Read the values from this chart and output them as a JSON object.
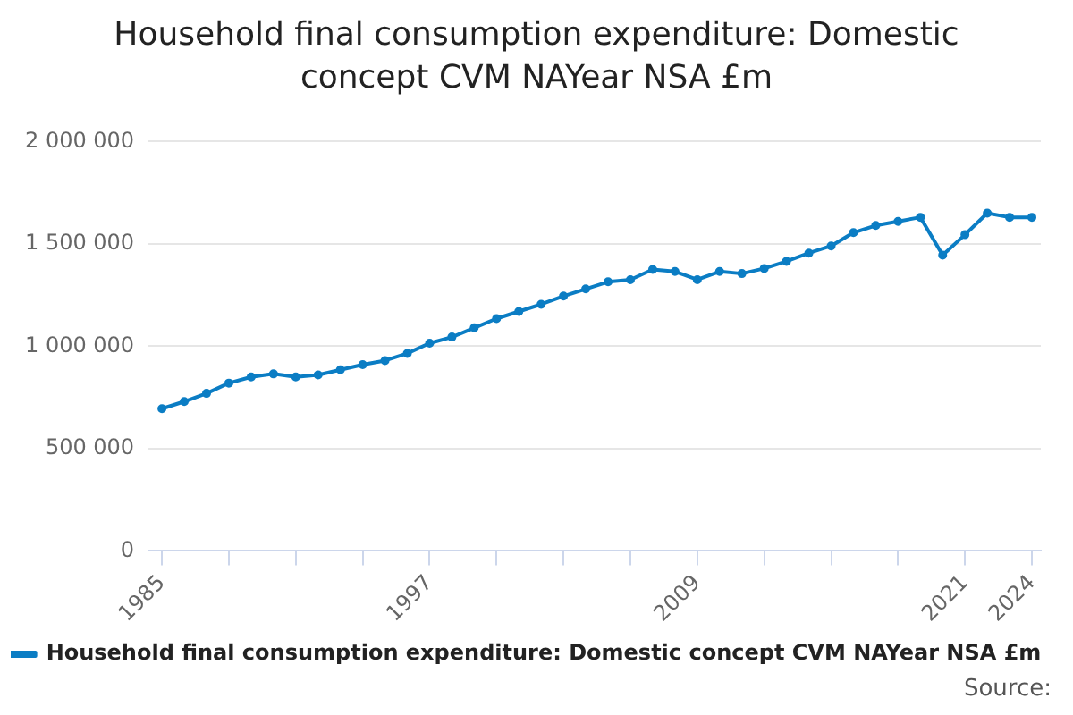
{
  "chart_data": {
    "type": "line",
    "title": "Household final consumption expenditure: Domestic concept CVM NAYear NSA £m",
    "x": [
      1985,
      1986,
      1987,
      1988,
      1989,
      1990,
      1991,
      1992,
      1993,
      1994,
      1995,
      1996,
      1997,
      1998,
      1999,
      2000,
      2001,
      2002,
      2003,
      2004,
      2005,
      2006,
      2007,
      2008,
      2009,
      2010,
      2011,
      2012,
      2013,
      2014,
      2015,
      2016,
      2017,
      2018,
      2019,
      2020,
      2021,
      2022,
      2023,
      2024
    ],
    "series": [
      {
        "name": "Household final consumption expenditure: Domestic concept CVM NAYear NSA £m",
        "color": "#0b7dc4",
        "values": [
          695000,
          730000,
          770000,
          820000,
          850000,
          865000,
          850000,
          860000,
          885000,
          910000,
          930000,
          965000,
          1015000,
          1045000,
          1090000,
          1135000,
          1170000,
          1205000,
          1245000,
          1280000,
          1315000,
          1325000,
          1375000,
          1365000,
          1325000,
          1365000,
          1355000,
          1380000,
          1415000,
          1455000,
          1490000,
          1555000,
          1590000,
          1610000,
          1630000,
          1445000,
          1545000,
          1650000,
          1630000,
          1630000
        ]
      }
    ],
    "xlim": [
      1984.4,
      2024.4
    ],
    "xticks": [
      {
        "value": 1985,
        "label": "1985"
      },
      {
        "value": 1988,
        "label": null
      },
      {
        "value": 1991,
        "label": null
      },
      {
        "value": 1994,
        "label": null
      },
      {
        "value": 1997,
        "label": "1997"
      },
      {
        "value": 2000,
        "label": null
      },
      {
        "value": 2003,
        "label": null
      },
      {
        "value": 2006,
        "label": null
      },
      {
        "value": 2009,
        "label": "2009"
      },
      {
        "value": 2012,
        "label": null
      },
      {
        "value": 2015,
        "label": null
      },
      {
        "value": 2018,
        "label": null
      },
      {
        "value": 2021,
        "label": "2021"
      },
      {
        "value": 2024,
        "label": "2024"
      }
    ],
    "ylim": [
      0,
      2000000
    ],
    "yticks": [
      {
        "value": 0,
        "label": "0"
      },
      {
        "value": 500000,
        "label": "500 000"
      },
      {
        "value": 1000000,
        "label": "1 000 000"
      },
      {
        "value": 1500000,
        "label": "1 500 000"
      },
      {
        "value": 2000000,
        "label": "2 000 000"
      }
    ],
    "grid": "y",
    "legend": "bottom",
    "marker": "circle",
    "line_style": "solid",
    "annotations": [
      "Source:"
    ]
  }
}
